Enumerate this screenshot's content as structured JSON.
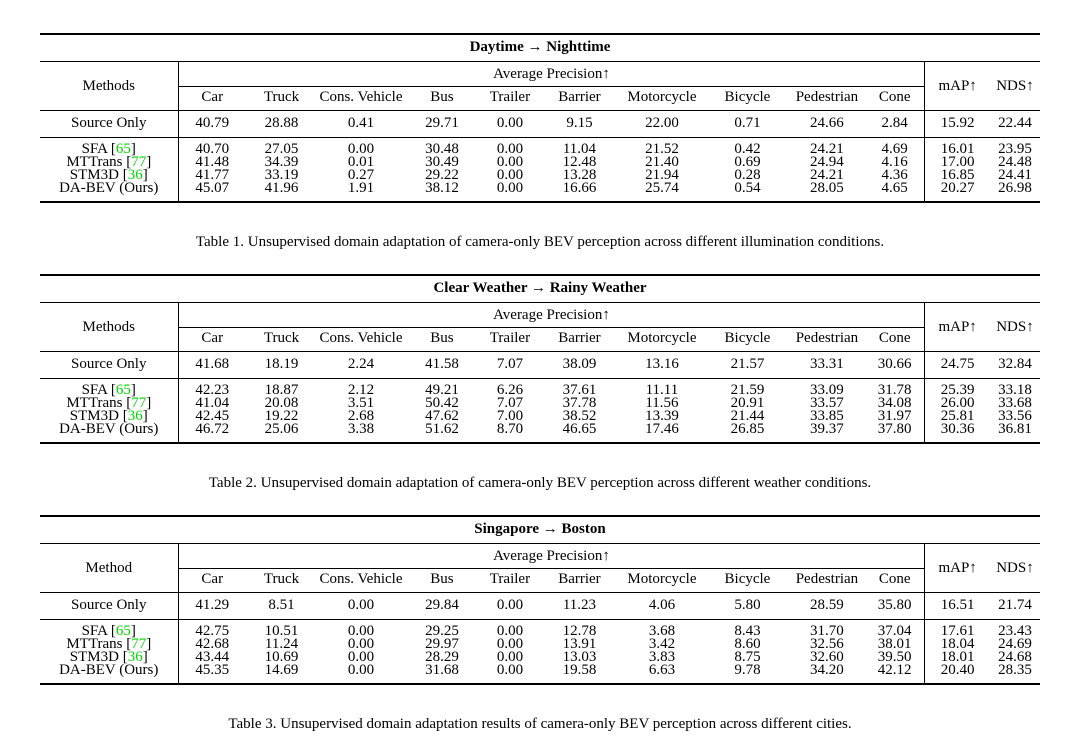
{
  "colors": {
    "citation_green": "#00d800",
    "text": "#000000",
    "background": "#ffffff"
  },
  "shared": {
    "ap_header": "Average Precision↑",
    "map_header": "mAP↑",
    "nds_header": "NDS↑",
    "classes": [
      "Car",
      "Truck",
      "Cons. Vehicle",
      "Bus",
      "Trailer",
      "Barrier",
      "Motorcycle",
      "Bicycle",
      "Pedestrian",
      "Cone"
    ]
  },
  "tables": [
    {
      "title": "Daytime → Nighttime",
      "methods_label": "Methods",
      "caption": "Table 1. Unsupervised domain adaptation of camera-only BEV perception across different illumination conditions.",
      "source_row": {
        "method": "Source Only",
        "cite": "",
        "ap": [
          "40.79",
          "28.88",
          "0.41",
          "29.71",
          "0.00",
          "9.15",
          "22.00",
          "0.71",
          "24.66",
          "2.84"
        ],
        "map": "15.92",
        "nds": "22.44"
      },
      "method_rows": [
        {
          "method": "SFA",
          "cite": "65",
          "ap": [
            "40.70",
            "27.05",
            "0.00",
            "30.48",
            "0.00",
            "11.04",
            "21.52",
            "0.42",
            "24.21",
            "4.69"
          ],
          "map": "16.01",
          "nds": "23.95"
        },
        {
          "method": "MTTrans",
          "cite": "77",
          "ap": [
            "41.48",
            "34.39",
            "0.01",
            "30.49",
            "0.00",
            "12.48",
            "21.40",
            "0.69",
            "24.94",
            "4.16"
          ],
          "map": "17.00",
          "nds": "24.48"
        },
        {
          "method": "STM3D",
          "cite": "36",
          "ap": [
            "41.77",
            "33.19",
            "0.27",
            "29.22",
            "0.00",
            "13.28",
            "21.94",
            "0.28",
            "24.21",
            "4.36"
          ],
          "map": "16.85",
          "nds": "24.41"
        },
        {
          "method": "DA-BEV (Ours)",
          "cite": "",
          "ap": [
            "45.07",
            "41.96",
            "1.91",
            "38.12",
            "0.00",
            "16.66",
            "25.74",
            "0.54",
            "28.05",
            "4.65"
          ],
          "map": "20.27",
          "nds": "26.98"
        }
      ]
    },
    {
      "title": "Clear Weather → Rainy Weather",
      "methods_label": "Methods",
      "caption": "Table 2. Unsupervised domain adaptation of camera-only BEV perception across different weather conditions.",
      "source_row": {
        "method": "Source Only",
        "cite": "",
        "ap": [
          "41.68",
          "18.19",
          "2.24",
          "41.58",
          "7.07",
          "38.09",
          "13.16",
          "21.57",
          "33.31",
          "30.66"
        ],
        "map": "24.75",
        "nds": "32.84"
      },
      "method_rows": [
        {
          "method": "SFA",
          "cite": "65",
          "ap": [
            "42.23",
            "18.87",
            "2.12",
            "49.21",
            "6.26",
            "37.61",
            "11.11",
            "21.59",
            "33.09",
            "31.78"
          ],
          "map": "25.39",
          "nds": "33.18"
        },
        {
          "method": "MTTrans",
          "cite": "77",
          "ap": [
            "41.04",
            "20.08",
            "3.51",
            "50.42",
            "7.07",
            "37.78",
            "11.56",
            "20.91",
            "33.57",
            "34.08"
          ],
          "map": "26.00",
          "nds": "33.68"
        },
        {
          "method": "STM3D",
          "cite": "36",
          "ap": [
            "42.45",
            "19.22",
            "2.68",
            "47.62",
            "7.00",
            "38.52",
            "13.39",
            "21.44",
            "33.85",
            "31.97"
          ],
          "map": "25.81",
          "nds": "33.56"
        },
        {
          "method": "DA-BEV (Ours)",
          "cite": "",
          "ap": [
            "46.72",
            "25.06",
            "3.38",
            "51.62",
            "8.70",
            "46.65",
            "17.46",
            "26.85",
            "39.37",
            "37.80"
          ],
          "map": "30.36",
          "nds": "36.81"
        }
      ]
    },
    {
      "title": "Singapore → Boston",
      "methods_label": "Method",
      "caption": "Table 3. Unsupervised domain adaptation results of camera-only BEV perception across different cities.",
      "source_row": {
        "method": "Source Only",
        "cite": "",
        "ap": [
          "41.29",
          "8.51",
          "0.00",
          "29.84",
          "0.00",
          "11.23",
          "4.06",
          "5.80",
          "28.59",
          "35.80"
        ],
        "map": "16.51",
        "nds": "21.74"
      },
      "method_rows": [
        {
          "method": "SFA",
          "cite": "65",
          "ap": [
            "42.75",
            "10.51",
            "0.00",
            "29.25",
            "0.00",
            "12.78",
            "3.68",
            "8.43",
            "31.70",
            "37.04"
          ],
          "map": "17.61",
          "nds": "23.43"
        },
        {
          "method": "MTTrans",
          "cite": "77",
          "ap": [
            "42.68",
            "11.24",
            "0.00",
            "29.97",
            "0.00",
            "13.91",
            "3.42",
            "8.60",
            "32.56",
            "38.01"
          ],
          "map": "18.04",
          "nds": "24.69"
        },
        {
          "method": "STM3D",
          "cite": "36",
          "ap": [
            "43.44",
            "10.69",
            "0.00",
            "28.29",
            "0.00",
            "13.03",
            "3.83",
            "8.75",
            "32.60",
            "39.50"
          ],
          "map": "18.01",
          "nds": "24.68"
        },
        {
          "method": "DA-BEV (Ours)",
          "cite": "",
          "ap": [
            "45.35",
            "14.69",
            "0.00",
            "31.68",
            "0.00",
            "19.58",
            "6.63",
            "9.78",
            "34.20",
            "42.12"
          ],
          "map": "20.40",
          "nds": "28.35"
        }
      ]
    }
  ]
}
